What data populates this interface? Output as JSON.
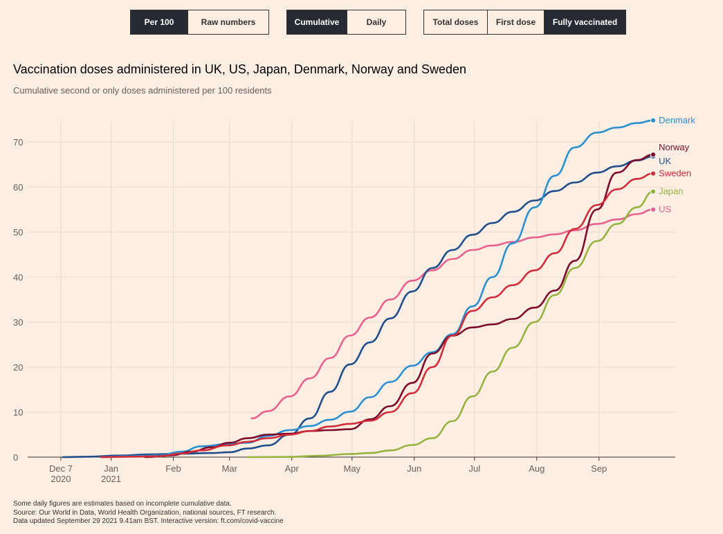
{
  "controls": {
    "units": [
      {
        "label": "Per 100",
        "active": true
      },
      {
        "label": "Raw numbers",
        "active": false
      }
    ],
    "mode": [
      {
        "label": "Cumulative",
        "active": true
      },
      {
        "label": "Daily",
        "active": false
      }
    ],
    "dose": [
      {
        "label": "Total doses",
        "active": false
      },
      {
        "label": "First dose",
        "active": false
      },
      {
        "label": "Fully vaccinated",
        "active": true
      }
    ]
  },
  "title": "Vaccination doses administered in UK, US, Japan, Denmark, Norway and Sweden",
  "subtitle": "Cumulative second or only doses administered per 100 residents",
  "footer": {
    "note": "Some daily figures are estimates based on incomplete cumulative data.",
    "source": "Source: Our World in Data, World Health Organization, national sources, FT research.",
    "updated": "Data updated September 29 2021 9.41am BST. Interactive version: ft.com/covid-vaccine"
  },
  "chart_data": {
    "type": "line",
    "x_axis": {
      "type": "date",
      "range": [
        "2020-12-07",
        "2021-09-28"
      ],
      "ticks": [
        {
          "date": "2020-12-07",
          "label": "Dec 7",
          "sublabel": "2020"
        },
        {
          "date": "2021-01-01",
          "label": "Jan",
          "sublabel": "2021"
        },
        {
          "date": "2021-02-01",
          "label": "Feb"
        },
        {
          "date": "2021-03-01",
          "label": "Mar"
        },
        {
          "date": "2021-04-01",
          "label": "Apr"
        },
        {
          "date": "2021-05-01",
          "label": "May"
        },
        {
          "date": "2021-06-01",
          "label": "Jun"
        },
        {
          "date": "2021-07-01",
          "label": "Jul"
        },
        {
          "date": "2021-08-01",
          "label": "Aug"
        },
        {
          "date": "2021-09-01",
          "label": "Sep"
        }
      ]
    },
    "y_axis": {
      "range": [
        0,
        75
      ],
      "ticks": [
        0,
        10,
        20,
        30,
        40,
        50,
        60,
        70
      ]
    },
    "grid": true,
    "legend": "direct labels at line ends",
    "series": [
      {
        "name": "US",
        "color": "#e8618c",
        "points": [
          [
            "2021-03-12",
            8.6
          ],
          [
            "2021-03-20",
            10.2
          ],
          [
            "2021-03-31",
            13.5
          ],
          [
            "2021-04-10",
            17.5
          ],
          [
            "2021-04-20",
            22
          ],
          [
            "2021-04-30",
            27
          ],
          [
            "2021-05-10",
            31
          ],
          [
            "2021-05-20",
            35
          ],
          [
            "2021-05-31",
            39.2
          ],
          [
            "2021-06-10",
            41.5
          ],
          [
            "2021-06-20",
            44
          ],
          [
            "2021-06-30",
            46
          ],
          [
            "2021-07-10",
            47
          ],
          [
            "2021-07-20",
            47.8
          ],
          [
            "2021-07-31",
            48.8
          ],
          [
            "2021-08-10",
            49.5
          ],
          [
            "2021-08-20",
            50.4
          ],
          [
            "2021-08-31",
            51.8
          ],
          [
            "2021-09-10",
            52.8
          ],
          [
            "2021-09-20",
            54
          ],
          [
            "2021-09-28",
            55
          ]
        ]
      },
      {
        "name": "UK",
        "color": "#1e4d8c",
        "points": [
          [
            "2020-12-08",
            0
          ],
          [
            "2020-12-20",
            0.1
          ],
          [
            "2021-01-05",
            0.35
          ],
          [
            "2021-01-20",
            0.6
          ],
          [
            "2021-02-05",
            0.75
          ],
          [
            "2021-02-20",
            0.9
          ],
          [
            "2021-03-01",
            1.1
          ],
          [
            "2021-03-10",
            1.9
          ],
          [
            "2021-03-20",
            2.6
          ],
          [
            "2021-03-31",
            5
          ],
          [
            "2021-04-10",
            8.6
          ],
          [
            "2021-04-20",
            14.5
          ],
          [
            "2021-04-30",
            20.6
          ],
          [
            "2021-05-10",
            25.5
          ],
          [
            "2021-05-20",
            30.8
          ],
          [
            "2021-05-31",
            36.8
          ],
          [
            "2021-06-10",
            42
          ],
          [
            "2021-06-20",
            46
          ],
          [
            "2021-06-30",
            49.4
          ],
          [
            "2021-07-10",
            52
          ],
          [
            "2021-07-20",
            54.5
          ],
          [
            "2021-07-31",
            57
          ],
          [
            "2021-08-10",
            59.1
          ],
          [
            "2021-08-20",
            61
          ],
          [
            "2021-08-31",
            63.2
          ],
          [
            "2021-09-10",
            64.6
          ],
          [
            "2021-09-20",
            65.9
          ],
          [
            "2021-09-28",
            66.8
          ]
        ]
      },
      {
        "name": "Denmark",
        "color": "#298fd1",
        "points": [
          [
            "2020-12-27",
            0
          ],
          [
            "2021-01-10",
            0.2
          ],
          [
            "2021-01-25",
            0.4
          ],
          [
            "2021-02-05",
            1.2
          ],
          [
            "2021-02-15",
            2.4
          ],
          [
            "2021-02-28",
            2.9
          ],
          [
            "2021-03-10",
            3.2
          ],
          [
            "2021-03-20",
            4.7
          ],
          [
            "2021-03-31",
            6
          ],
          [
            "2021-04-10",
            6.9
          ],
          [
            "2021-04-20",
            8.3
          ],
          [
            "2021-04-30",
            10.1
          ],
          [
            "2021-05-10",
            13.3
          ],
          [
            "2021-05-20",
            16.7
          ],
          [
            "2021-05-31",
            20.3
          ],
          [
            "2021-06-10",
            23.3
          ],
          [
            "2021-06-20",
            27.3
          ],
          [
            "2021-06-30",
            33.5
          ],
          [
            "2021-07-10",
            40
          ],
          [
            "2021-07-20",
            47.5
          ],
          [
            "2021-07-31",
            55.5
          ],
          [
            "2021-08-10",
            62.5
          ],
          [
            "2021-08-20",
            68.8
          ],
          [
            "2021-08-31",
            72.1
          ],
          [
            "2021-09-10",
            73.2
          ],
          [
            "2021-09-20",
            74.2
          ],
          [
            "2021-09-28",
            74.8
          ]
        ]
      },
      {
        "name": "Norway",
        "color": "#7e0a2a",
        "points": [
          [
            "2021-01-18",
            0
          ],
          [
            "2021-01-31",
            0.4
          ],
          [
            "2021-02-10",
            1.2
          ],
          [
            "2021-02-20",
            2.2
          ],
          [
            "2021-03-01",
            3.2
          ],
          [
            "2021-03-10",
            4.2
          ],
          [
            "2021-03-20",
            5
          ],
          [
            "2021-03-31",
            5.2
          ],
          [
            "2021-04-10",
            5.8
          ],
          [
            "2021-04-20",
            6
          ],
          [
            "2021-04-30",
            6.2
          ],
          [
            "2021-05-10",
            8.4
          ],
          [
            "2021-05-20",
            11.3
          ],
          [
            "2021-05-31",
            16.5
          ],
          [
            "2021-06-10",
            23
          ],
          [
            "2021-06-20",
            27
          ],
          [
            "2021-06-30",
            28.8
          ],
          [
            "2021-07-10",
            29.5
          ],
          [
            "2021-07-20",
            30.7
          ],
          [
            "2021-07-31",
            33.2
          ],
          [
            "2021-08-10",
            37
          ],
          [
            "2021-08-20",
            43.6
          ],
          [
            "2021-08-31",
            55
          ],
          [
            "2021-09-10",
            63.2
          ],
          [
            "2021-09-20",
            66
          ],
          [
            "2021-09-28",
            67.2
          ]
        ]
      },
      {
        "name": "Sweden",
        "color": "#d22c3b",
        "points": [
          [
            "2020-12-27",
            0
          ],
          [
            "2021-01-10",
            0.1
          ],
          [
            "2021-01-25",
            0.2
          ],
          [
            "2021-02-05",
            0.8
          ],
          [
            "2021-02-15",
            1.5
          ],
          [
            "2021-02-28",
            2.6
          ],
          [
            "2021-03-10",
            3.4
          ],
          [
            "2021-03-20",
            4.2
          ],
          [
            "2021-03-31",
            5
          ],
          [
            "2021-04-10",
            5.8
          ],
          [
            "2021-04-20",
            6.8
          ],
          [
            "2021-04-30",
            7.4
          ],
          [
            "2021-05-10",
            8.1
          ],
          [
            "2021-05-20",
            10
          ],
          [
            "2021-05-31",
            14.2
          ],
          [
            "2021-06-10",
            20
          ],
          [
            "2021-06-20",
            27
          ],
          [
            "2021-06-30",
            32.5
          ],
          [
            "2021-07-10",
            35.5
          ],
          [
            "2021-07-20",
            38.2
          ],
          [
            "2021-07-31",
            41.5
          ],
          [
            "2021-08-10",
            45.3
          ],
          [
            "2021-08-20",
            50.7
          ],
          [
            "2021-08-31",
            56
          ],
          [
            "2021-09-10",
            59.5
          ],
          [
            "2021-09-20",
            61.8
          ],
          [
            "2021-09-28",
            63
          ]
        ]
      },
      {
        "name": "Japan",
        "color": "#96b33e",
        "points": [
          [
            "2021-03-10",
            0
          ],
          [
            "2021-03-31",
            0.05
          ],
          [
            "2021-04-15",
            0.3
          ],
          [
            "2021-04-30",
            0.7
          ],
          [
            "2021-05-10",
            0.9
          ],
          [
            "2021-05-20",
            1.5
          ],
          [
            "2021-05-31",
            2.7
          ],
          [
            "2021-06-10",
            4.2
          ],
          [
            "2021-06-20",
            8
          ],
          [
            "2021-06-30",
            13.5
          ],
          [
            "2021-07-10",
            19
          ],
          [
            "2021-07-20",
            24.3
          ],
          [
            "2021-07-31",
            30
          ],
          [
            "2021-08-10",
            36
          ],
          [
            "2021-08-20",
            42
          ],
          [
            "2021-08-31",
            48
          ],
          [
            "2021-09-10",
            51.8
          ],
          [
            "2021-09-20",
            55.5
          ],
          [
            "2021-09-28",
            59
          ]
        ]
      }
    ]
  }
}
